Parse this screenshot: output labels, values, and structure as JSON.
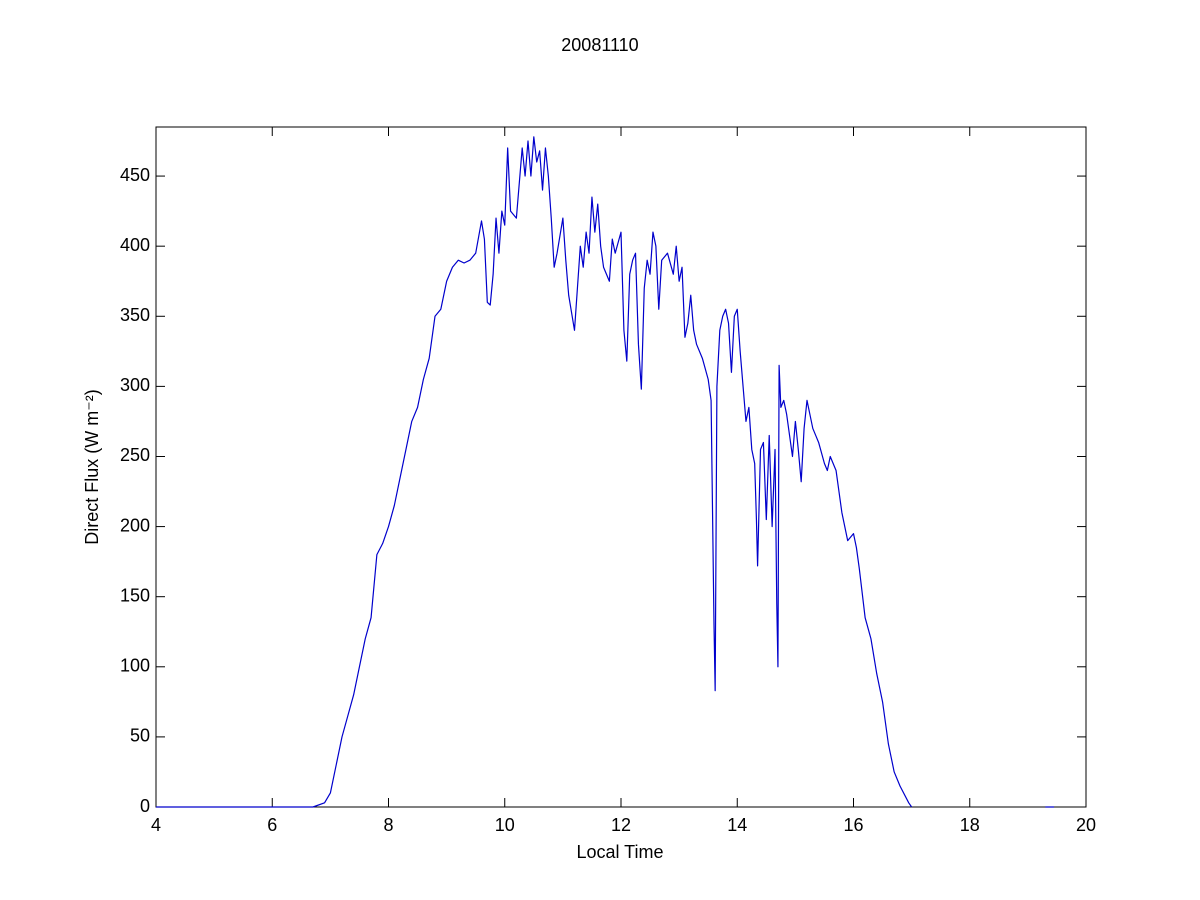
{
  "chart_data": {
    "type": "line",
    "title": "20081110",
    "xlabel": "Local Time",
    "ylabel": "Direct Flux (W m⁻²)",
    "x": [
      4.0,
      5.0,
      6.0,
      6.7,
      6.9,
      7.0,
      7.1,
      7.2,
      7.3,
      7.4,
      7.5,
      7.6,
      7.7,
      7.8,
      7.9,
      8.0,
      8.1,
      8.2,
      8.3,
      8.4,
      8.5,
      8.6,
      8.7,
      8.8,
      8.9,
      9.0,
      9.1,
      9.2,
      9.3,
      9.4,
      9.5,
      9.6,
      9.65,
      9.7,
      9.75,
      9.8,
      9.85,
      9.9,
      9.95,
      10.0,
      10.05,
      10.1,
      10.2,
      10.3,
      10.35,
      10.4,
      10.45,
      10.5,
      10.55,
      10.6,
      10.65,
      10.7,
      10.75,
      10.8,
      10.85,
      10.9,
      11.0,
      11.05,
      11.1,
      11.2,
      11.25,
      11.3,
      11.35,
      11.4,
      11.45,
      11.5,
      11.55,
      11.6,
      11.65,
      11.7,
      11.75,
      11.8,
      11.85,
      11.9,
      12.0,
      12.05,
      12.1,
      12.15,
      12.2,
      12.25,
      12.3,
      12.35,
      12.4,
      12.45,
      12.5,
      12.55,
      12.6,
      12.65,
      12.7,
      12.8,
      12.9,
      12.95,
      13.0,
      13.05,
      13.1,
      13.15,
      13.2,
      13.25,
      13.3,
      13.4,
      13.5,
      13.55,
      13.6,
      13.62,
      13.65,
      13.7,
      13.75,
      13.8,
      13.85,
      13.9,
      13.95,
      14.0,
      14.05,
      14.1,
      14.15,
      14.2,
      14.25,
      14.3,
      14.33,
      14.35,
      14.4,
      14.45,
      14.5,
      14.55,
      14.6,
      14.65,
      14.68,
      14.7,
      14.72,
      14.75,
      14.8,
      14.85,
      14.9,
      14.95,
      15.0,
      15.05,
      15.1,
      15.15,
      15.2,
      15.3,
      15.35,
      15.4,
      15.5,
      15.55,
      15.6,
      15.7,
      15.75,
      15.8,
      15.85,
      15.9,
      16.0,
      16.05,
      16.1,
      16.2,
      16.3,
      16.4,
      16.5,
      16.6,
      16.7,
      16.8,
      16.95,
      17.0,
      18.0,
      19.3,
      19.45
    ],
    "values": [
      0,
      0,
      0,
      0,
      3,
      10,
      30,
      50,
      65,
      80,
      100,
      120,
      135,
      180,
      188,
      200,
      215,
      235,
      255,
      275,
      285,
      305,
      320,
      350,
      355,
      375,
      385,
      390,
      388,
      390,
      395,
      418,
      405,
      360,
      358,
      380,
      420,
      395,
      425,
      415,
      470,
      425,
      420,
      470,
      450,
      475,
      450,
      478,
      460,
      468,
      440,
      470,
      450,
      420,
      385,
      395,
      420,
      390,
      365,
      340,
      370,
      400,
      385,
      410,
      395,
      435,
      410,
      430,
      400,
      385,
      380,
      375,
      405,
      395,
      410,
      340,
      318,
      380,
      390,
      395,
      330,
      298,
      370,
      390,
      380,
      410,
      400,
      355,
      390,
      395,
      380,
      400,
      375,
      385,
      335,
      345,
      365,
      340,
      330,
      320,
      305,
      290,
      130,
      83,
      300,
      340,
      350,
      355,
      345,
      310,
      350,
      355,
      325,
      300,
      275,
      285,
      255,
      245,
      205,
      172,
      255,
      260,
      205,
      265,
      200,
      255,
      145,
      100,
      315,
      285,
      290,
      280,
      265,
      250,
      275,
      255,
      232,
      270,
      290,
      270,
      265,
      260,
      245,
      240,
      250,
      240,
      225,
      210,
      200,
      190,
      195,
      185,
      170,
      135,
      120,
      95,
      75,
      45,
      25,
      15,
      3,
      0,
      null,
      0,
      0
    ],
    "color": "#0000cc",
    "xlim": [
      4,
      20
    ],
    "xticks": [
      4,
      6,
      8,
      10,
      12,
      14,
      16,
      18,
      20
    ],
    "ylim": [
      0,
      485
    ],
    "yticks": [
      0,
      50,
      100,
      150,
      200,
      250,
      300,
      350,
      400,
      450
    ]
  }
}
